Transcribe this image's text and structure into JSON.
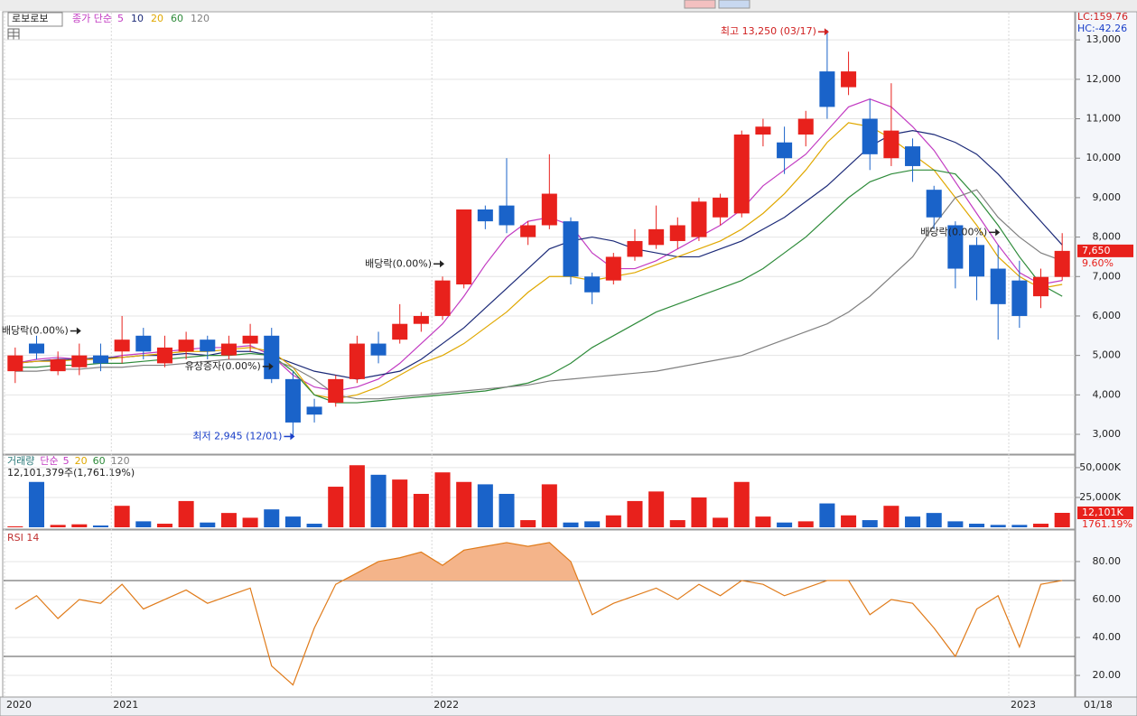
{
  "chart_data": [
    {
      "type": "candlestick",
      "title": "로보로보",
      "indicator_label": "종가 단순",
      "categories": [
        "2020",
        null,
        null,
        null,
        null,
        "2021",
        null,
        null,
        null,
        null,
        null,
        null,
        null,
        null,
        null,
        null,
        null,
        null,
        null,
        null,
        "2022",
        null,
        null,
        null,
        null,
        null,
        null,
        null,
        null,
        null,
        null,
        null,
        null,
        null,
        null,
        null,
        null,
        null,
        null,
        null,
        null,
        null,
        null,
        null,
        null,
        null,
        null,
        "2023",
        null,
        null
      ],
      "end_date_label": "01/18",
      "open": [
        4600,
        5300,
        4600,
        4700,
        5000,
        5100,
        5500,
        4800,
        5100,
        5400,
        5000,
        5300,
        5500,
        4400,
        3700,
        3800,
        4400,
        5300,
        5400,
        5800,
        6000,
        6800,
        8700,
        8800,
        8000,
        8300,
        8400,
        7000,
        6900,
        7500,
        7800,
        7900,
        8000,
        8500,
        8600,
        10600,
        10400,
        10600,
        12200,
        11800,
        11000,
        10000,
        10300,
        9200,
        8300,
        7800,
        7200,
        6900,
        6500,
        6990
      ],
      "high": [
        5200,
        5500,
        5100,
        5300,
        5300,
        6000,
        5700,
        5500,
        5600,
        5500,
        5500,
        5800,
        5700,
        4600,
        3900,
        4500,
        5500,
        5600,
        6300,
        6100,
        7000,
        8700,
        8800,
        10000,
        8400,
        10100,
        8500,
        7100,
        7600,
        8200,
        8800,
        8500,
        9000,
        9100,
        10700,
        11000,
        10800,
        11200,
        13250,
        12700,
        11500,
        11900,
        10500,
        9300,
        8400,
        8000,
        7800,
        7400,
        7200,
        8100
      ],
      "low": [
        4300,
        4900,
        4500,
        4500,
        4600,
        4800,
        4900,
        4700,
        4900,
        4900,
        4900,
        5100,
        4300,
        2945,
        3300,
        3700,
        4300,
        4800,
        5300,
        5600,
        5900,
        6700,
        8200,
        8100,
        7800,
        8200,
        6800,
        6300,
        6800,
        7400,
        7700,
        7700,
        7900,
        8300,
        8500,
        10300,
        9600,
        10300,
        11000,
        11600,
        9700,
        9800,
        9400,
        8200,
        6700,
        6400,
        5400,
        5700,
        6200,
        6900
      ],
      "close": [
        5000,
        5050,
        4900,
        5000,
        4800,
        5400,
        5100,
        5200,
        5400,
        5100,
        5300,
        5500,
        4400,
        3300,
        3500,
        4400,
        5300,
        5000,
        5800,
        6000,
        6900,
        8700,
        8400,
        8300,
        8300,
        9100,
        7000,
        6600,
        7500,
        7900,
        8200,
        8300,
        8900,
        9000,
        10600,
        10800,
        10000,
        11000,
        11300,
        12200,
        10100,
        10700,
        9800,
        8500,
        7200,
        7000,
        6300,
        6000,
        6990,
        7650
      ],
      "up_color": "#e8211c",
      "down_color": "#1a63c9",
      "series": [
        {
          "name": "5",
          "color": "#c23bc2",
          "values": [
            4800,
            4900,
            4950,
            4900,
            4900,
            5000,
            5050,
            5100,
            5150,
            5200,
            5200,
            5250,
            5000,
            4500,
            4200,
            4100,
            4200,
            4400,
            4800,
            5300,
            5800,
            6500,
            7300,
            8000,
            8400,
            8500,
            8300,
            7600,
            7200,
            7200,
            7400,
            7700,
            8000,
            8300,
            8700,
            9300,
            9700,
            10100,
            10700,
            11300,
            11500,
            11300,
            10800,
            10200,
            9400,
            8600,
            7800,
            7100,
            6800,
            6900
          ]
        },
        {
          "name": "10",
          "color": "#1c2a78",
          "values": [
            4800,
            4850,
            4900,
            4900,
            4950,
            4950,
            5000,
            5000,
            5050,
            5000,
            5100,
            5100,
            5000,
            4800,
            4600,
            4500,
            4400,
            4500,
            4600,
            4900,
            5300,
            5700,
            6200,
            6700,
            7200,
            7700,
            7900,
            8000,
            7900,
            7700,
            7600,
            7500,
            7500,
            7700,
            7900,
            8200,
            8500,
            8900,
            9300,
            9800,
            10300,
            10600,
            10700,
            10600,
            10400,
            10100,
            9600,
            9000,
            8400,
            7800
          ]
        },
        {
          "name": "20",
          "color": "#e0a800",
          "values": [
            4800,
            4850,
            4850,
            4900,
            4900,
            4950,
            5000,
            5050,
            5100,
            5100,
            5150,
            5200,
            5100,
            4700,
            4000,
            3900,
            4000,
            4200,
            4500,
            4800,
            5000,
            5300,
            5700,
            6100,
            6600,
            7000,
            7000,
            6900,
            7000,
            7100,
            7300,
            7500,
            7700,
            7900,
            8200,
            8600,
            9100,
            9700,
            10400,
            10900,
            10800,
            10500,
            10100,
            9700,
            9000,
            8300,
            7500,
            7000,
            6700,
            6800
          ]
        },
        {
          "name": "60",
          "color": "#2e8b3a",
          "values": [
            4700,
            4700,
            4750,
            4750,
            4800,
            4800,
            4850,
            4900,
            4950,
            5000,
            5000,
            5050,
            5000,
            4600,
            4000,
            3800,
            3800,
            3850,
            3900,
            3950,
            4000,
            4050,
            4100,
            4200,
            4300,
            4500,
            4800,
            5200,
            5500,
            5800,
            6100,
            6300,
            6500,
            6700,
            6900,
            7200,
            7600,
            8000,
            8500,
            9000,
            9400,
            9600,
            9700,
            9700,
            9600,
            9000,
            8300,
            7500,
            6800,
            6500
          ]
        },
        {
          "name": "120",
          "color": "#808080",
          "values": [
            4600,
            4600,
            4650,
            4650,
            4700,
            4700,
            4750,
            4750,
            4800,
            4850,
            4900,
            4900,
            4900,
            4700,
            4400,
            4000,
            3900,
            3900,
            3950,
            4000,
            4050,
            4100,
            4150,
            4200,
            4250,
            4350,
            4400,
            4450,
            4500,
            4550,
            4600,
            4700,
            4800,
            4900,
            5000,
            5200,
            5400,
            5600,
            5800,
            6100,
            6500,
            7000,
            7500,
            8300,
            9000,
            9200,
            8500,
            8000,
            7600,
            7400
          ]
        }
      ],
      "ylim": [
        2520,
        13690
      ],
      "yticks": [
        {
          "value": 3000,
          "label": "3,000"
        },
        {
          "value": 4000,
          "label": "4,000"
        },
        {
          "value": 5000,
          "label": "5,000"
        },
        {
          "value": 6000,
          "label": "6,000"
        },
        {
          "value": 7000,
          "label": "7,000"
        },
        {
          "value": 8000,
          "label": "8,000"
        },
        {
          "value": 9000,
          "label": "9,000"
        },
        {
          "value": 10000,
          "label": "10,000"
        },
        {
          "value": 11000,
          "label": "11,000"
        },
        {
          "value": 12000,
          "label": "12,000"
        },
        {
          "value": 13000,
          "label": "13,000"
        }
      ],
      "grid": true,
      "annotations": [
        {
          "text": "최고 13,250 (03/17)",
          "index": 38,
          "value": 13250,
          "color": "#d02020"
        },
        {
          "text": "최저 2,945 (12/01)",
          "index": 13,
          "value": 2945,
          "color": "#1a3fc9"
        },
        {
          "text": "배당락(0.00%)",
          "index": 3,
          "value": 5300,
          "color": "#222222"
        },
        {
          "text": "유상증자(0.00%)",
          "index": 12,
          "value": 4400,
          "color": "#222222"
        },
        {
          "text": "배당락(0.00%)",
          "index": 20,
          "value": 7000,
          "color": "#222222"
        },
        {
          "text": "배당락(0.00%)",
          "index": 46,
          "value": 7800,
          "color": "#222222"
        }
      ],
      "lc_label": "LC:159.76",
      "hc_label": "HC:-42.26",
      "last_label": "7,650",
      "change_label": "9.60%"
    },
    {
      "type": "bar",
      "title": "거래량",
      "indicator_label": "단순",
      "ma_names": [
        "5",
        "20",
        "60",
        "120"
      ],
      "summary": "12,101,379주(1,761.19%)",
      "values": [
        800,
        38000,
        2000,
        2500,
        1500,
        18000,
        5000,
        3000,
        22000,
        4000,
        12000,
        8000,
        15000,
        9000,
        3000,
        34000,
        52000,
        44000,
        40000,
        28000,
        46000,
        38000,
        36000,
        28000,
        6000,
        36000,
        4000,
        5000,
        10000,
        22000,
        30000,
        6000,
        25000,
        8000,
        38000,
        9000,
        4000,
        5000,
        20000,
        10000,
        6000,
        18000,
        9000,
        12000,
        5000,
        3000,
        2000,
        2000,
        3000,
        12101
      ],
      "ylim": [
        0,
        59000
      ],
      "yticks": [
        {
          "value": 25000,
          "label": "25,000K"
        },
        {
          "value": 50000,
          "label": "50,000K"
        }
      ],
      "last_label": "12,101K",
      "ratio_label": "1761.19%"
    },
    {
      "type": "line",
      "title": "RSI 14",
      "color": "#e07b1a",
      "fill_color": "#f4b48a",
      "values": [
        55,
        62,
        50,
        60,
        58,
        68,
        55,
        60,
        65,
        58,
        62,
        66,
        25,
        15,
        45,
        68,
        74,
        80,
        82,
        85,
        78,
        86,
        88,
        90,
        88,
        90,
        80,
        52,
        58,
        62,
        66,
        60,
        68,
        62,
        70,
        68,
        62,
        66,
        70,
        70,
        52,
        60,
        58,
        45,
        30,
        55,
        62,
        35,
        68,
        70
      ],
      "ylim": [
        8.6,
        95.2
      ],
      "yticks": [
        {
          "value": 20,
          "label": "20.00"
        },
        {
          "value": 40,
          "label": "40.00"
        },
        {
          "value": 60,
          "label": "60.00"
        },
        {
          "value": 80,
          "label": "80.00"
        }
      ],
      "guide_lines": [
        70,
        30
      ]
    }
  ]
}
